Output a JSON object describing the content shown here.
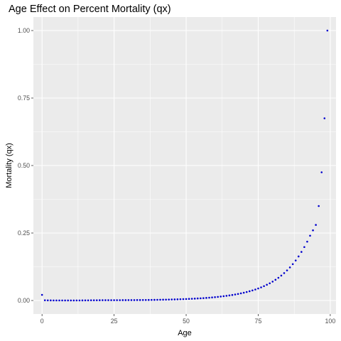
{
  "chart_data": {
    "type": "scatter",
    "title": "Age Effect on Percent Mortality (qx)",
    "xlabel": "Age",
    "ylabel": "Mortality (qx)",
    "xlim": [
      -3,
      102
    ],
    "ylim": [
      -0.05,
      1.05
    ],
    "x_ticks": [
      0,
      25,
      50,
      75,
      100
    ],
    "x_tick_labels": [
      "0",
      "25",
      "50",
      "75",
      "100"
    ],
    "y_ticks": [
      0,
      0.25,
      0.5,
      0.75,
      1.0
    ],
    "y_tick_labels": [
      "0.00",
      "0.25",
      "0.50",
      "0.75",
      "1.00"
    ],
    "grid": true,
    "panel_background": "#ebebeb",
    "grid_color": "#ffffff",
    "point_color": "#0000cd",
    "series": [
      {
        "x": [
          0,
          1,
          2,
          3,
          4,
          5,
          6,
          7,
          8,
          9,
          10,
          11,
          12,
          13,
          14,
          15,
          16,
          17,
          18,
          19,
          20,
          21,
          22,
          23,
          24,
          25,
          26,
          27,
          28,
          29,
          30,
          31,
          32,
          33,
          34,
          35,
          36,
          37,
          38,
          39,
          40,
          41,
          42,
          43,
          44,
          45,
          46,
          47,
          48,
          49,
          50,
          51,
          52,
          53,
          54,
          55,
          56,
          57,
          58,
          59,
          60,
          61,
          62,
          63,
          64,
          65,
          66,
          67,
          68,
          69,
          70,
          71,
          72,
          73,
          74,
          75,
          76,
          77,
          78,
          79,
          80,
          81,
          82,
          83,
          84,
          85,
          86,
          87,
          88,
          89,
          90,
          91,
          92,
          93,
          94,
          95,
          96,
          97,
          98,
          99
        ],
        "values": [
          0.021,
          0.001,
          0.0005,
          0.0004,
          0.0003,
          0.0003,
          0.0003,
          0.0003,
          0.0002,
          0.0002,
          0.0002,
          0.0002,
          0.0003,
          0.0003,
          0.0004,
          0.0005,
          0.0006,
          0.0008,
          0.0009,
          0.001,
          0.0011,
          0.0012,
          0.0012,
          0.0012,
          0.0012,
          0.0012,
          0.0013,
          0.0013,
          0.0014,
          0.0014,
          0.0015,
          0.0015,
          0.0016,
          0.0017,
          0.0018,
          0.0019,
          0.002,
          0.0021,
          0.0023,
          0.0024,
          0.0026,
          0.0028,
          0.003,
          0.0032,
          0.0035,
          0.0038,
          0.0041,
          0.0044,
          0.0048,
          0.0052,
          0.0056,
          0.006,
          0.0065,
          0.007,
          0.0076,
          0.0082,
          0.0089,
          0.0097,
          0.0105,
          0.0114,
          0.0124,
          0.0135,
          0.0147,
          0.016,
          0.0174,
          0.0189,
          0.0205,
          0.0223,
          0.0243,
          0.0265,
          0.0289,
          0.0315,
          0.0343,
          0.0374,
          0.0408,
          0.0446,
          0.0487,
          0.0533,
          0.0583,
          0.0638,
          0.07,
          0.0767,
          0.0842,
          0.0924,
          0.1015,
          0.1115,
          0.1226,
          0.1348,
          0.1483,
          0.1632,
          0.18,
          0.198,
          0.218,
          0.24,
          0.26,
          0.28,
          0.35,
          0.475,
          0.675,
          1.0
        ]
      }
    ]
  }
}
